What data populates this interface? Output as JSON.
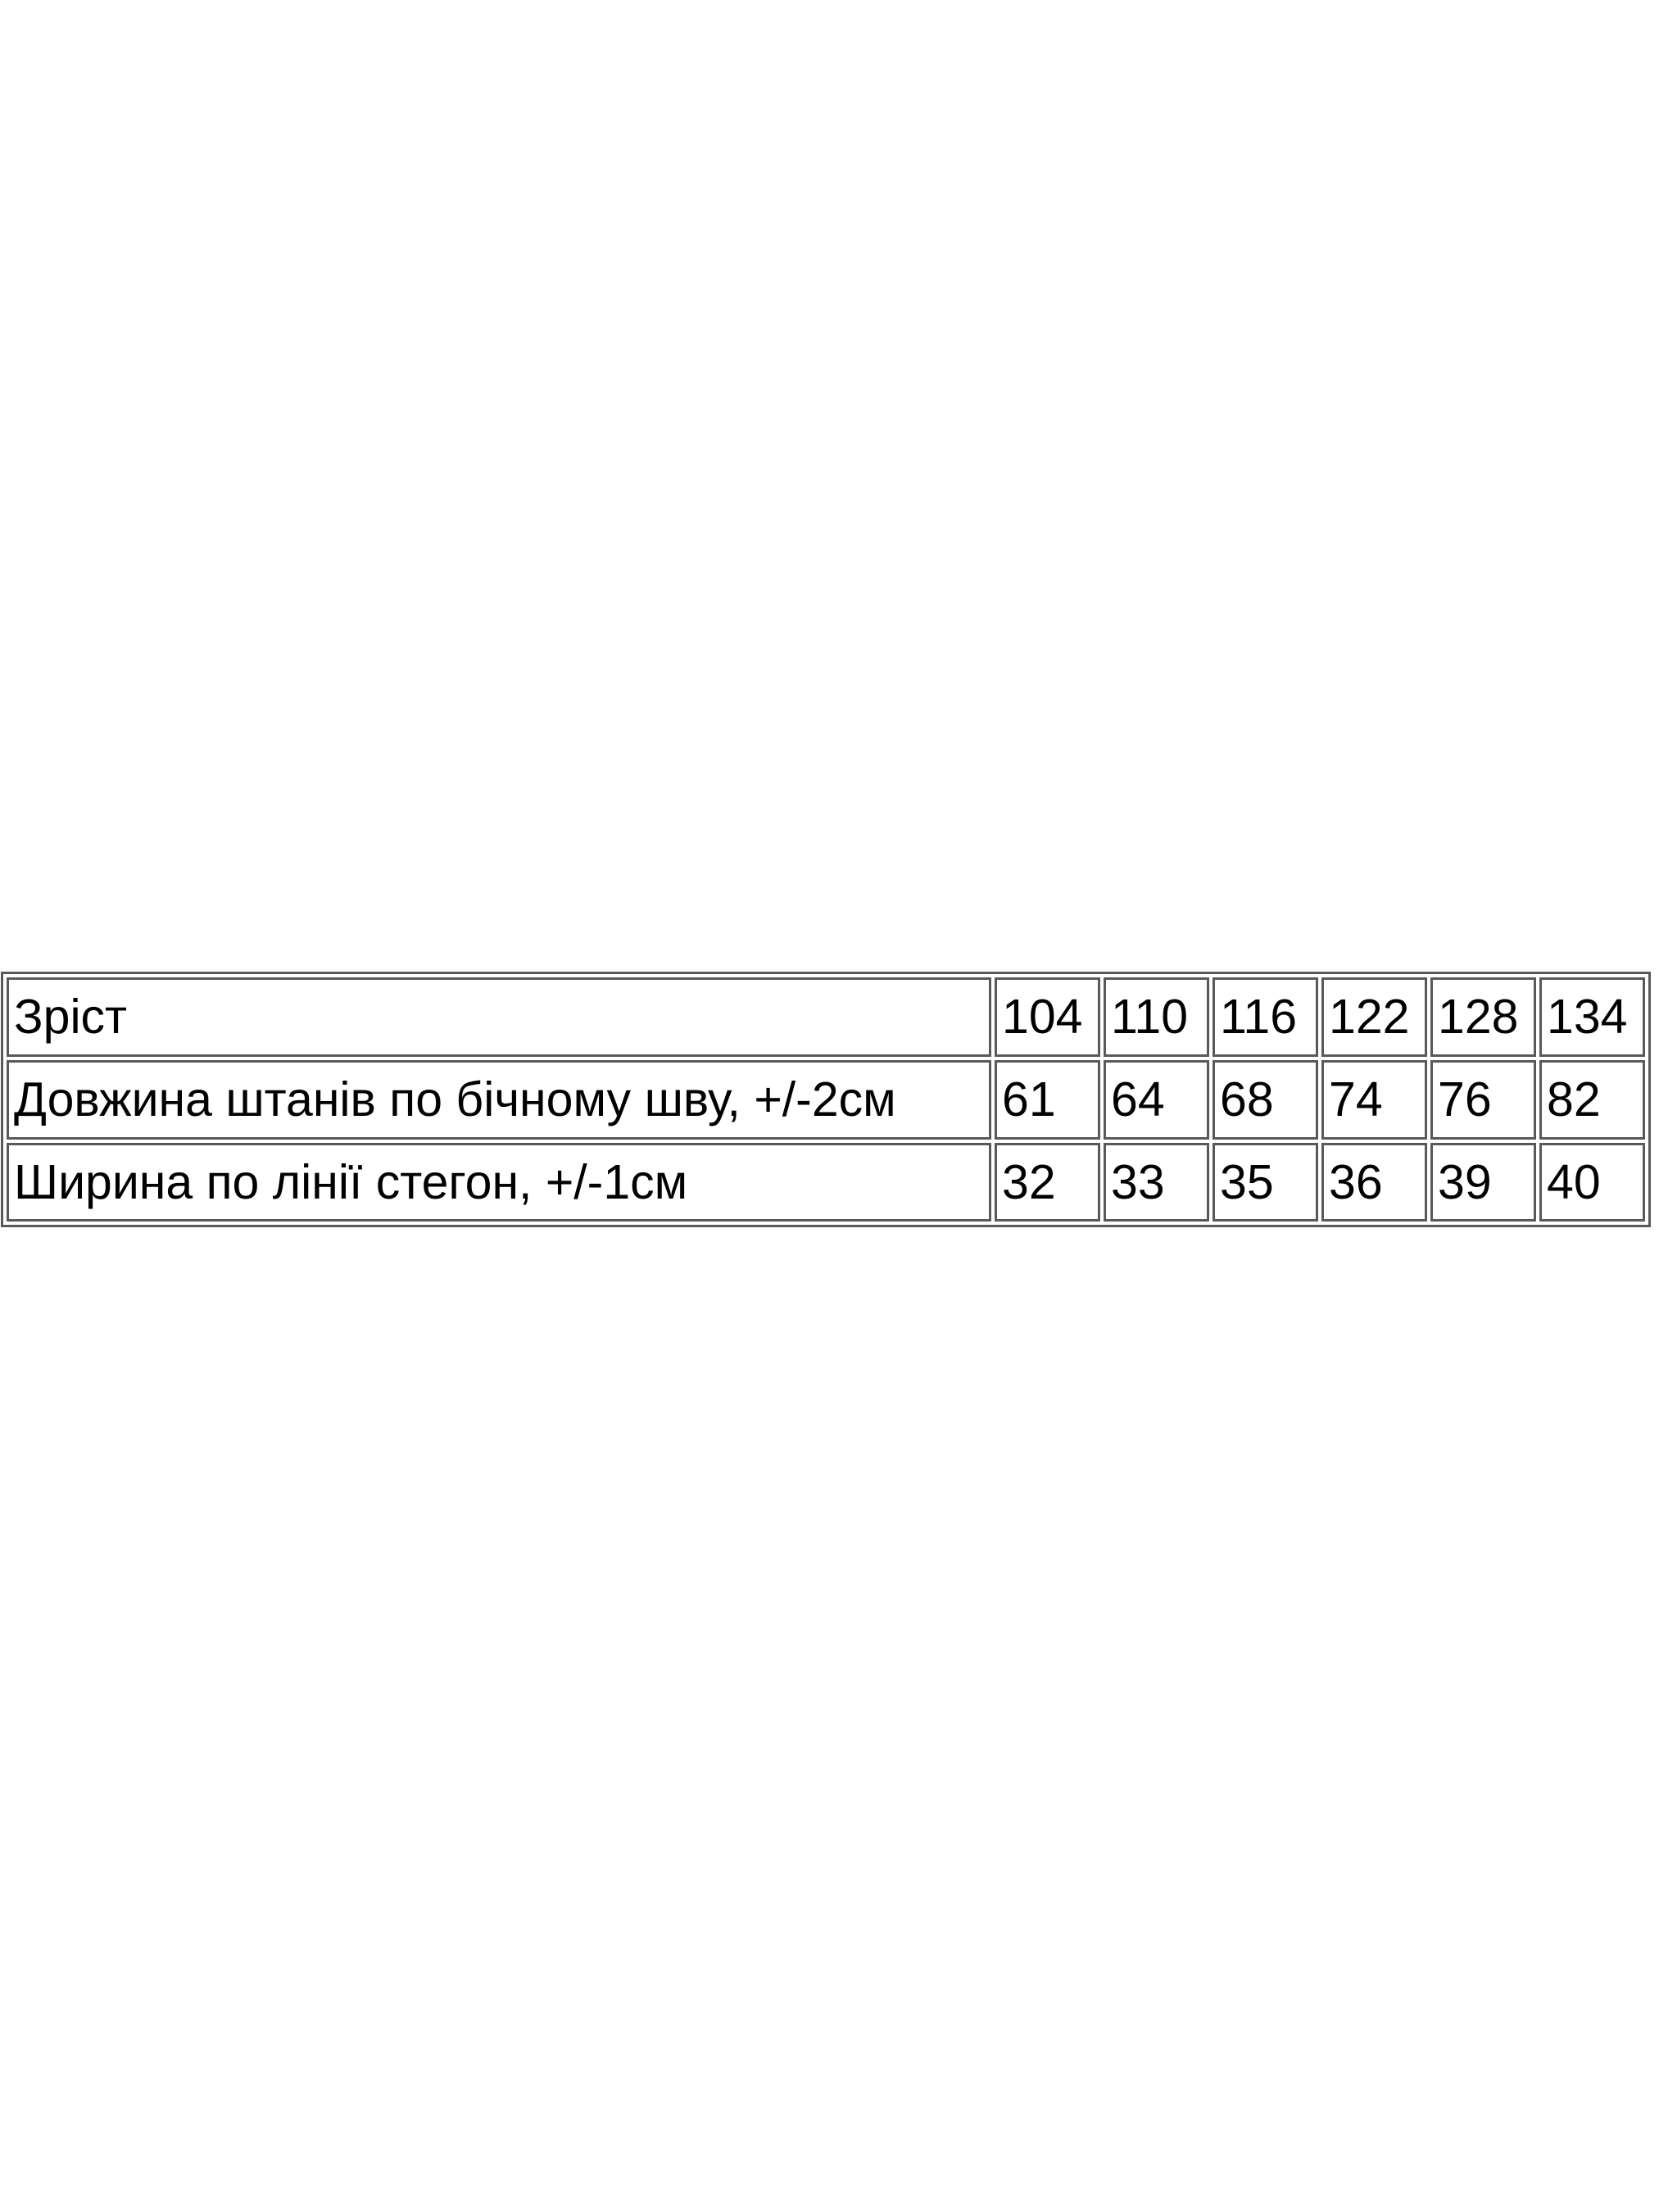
{
  "size_chart": {
    "border_color": "#595959",
    "text_color": "#000000",
    "rows": [
      {
        "label": "Зріст",
        "values": [
          "104",
          "110",
          "116",
          "122",
          "128",
          "134"
        ]
      },
      {
        "label": "Довжина штанів по бічному шву, +/-2см",
        "values": [
          "61",
          "64",
          "68",
          "74",
          "76",
          "82"
        ]
      },
      {
        "label": "Ширина по лінії стегон, +/-1см",
        "values": [
          "32",
          "33",
          "35",
          "36",
          "39",
          "40"
        ]
      }
    ]
  }
}
